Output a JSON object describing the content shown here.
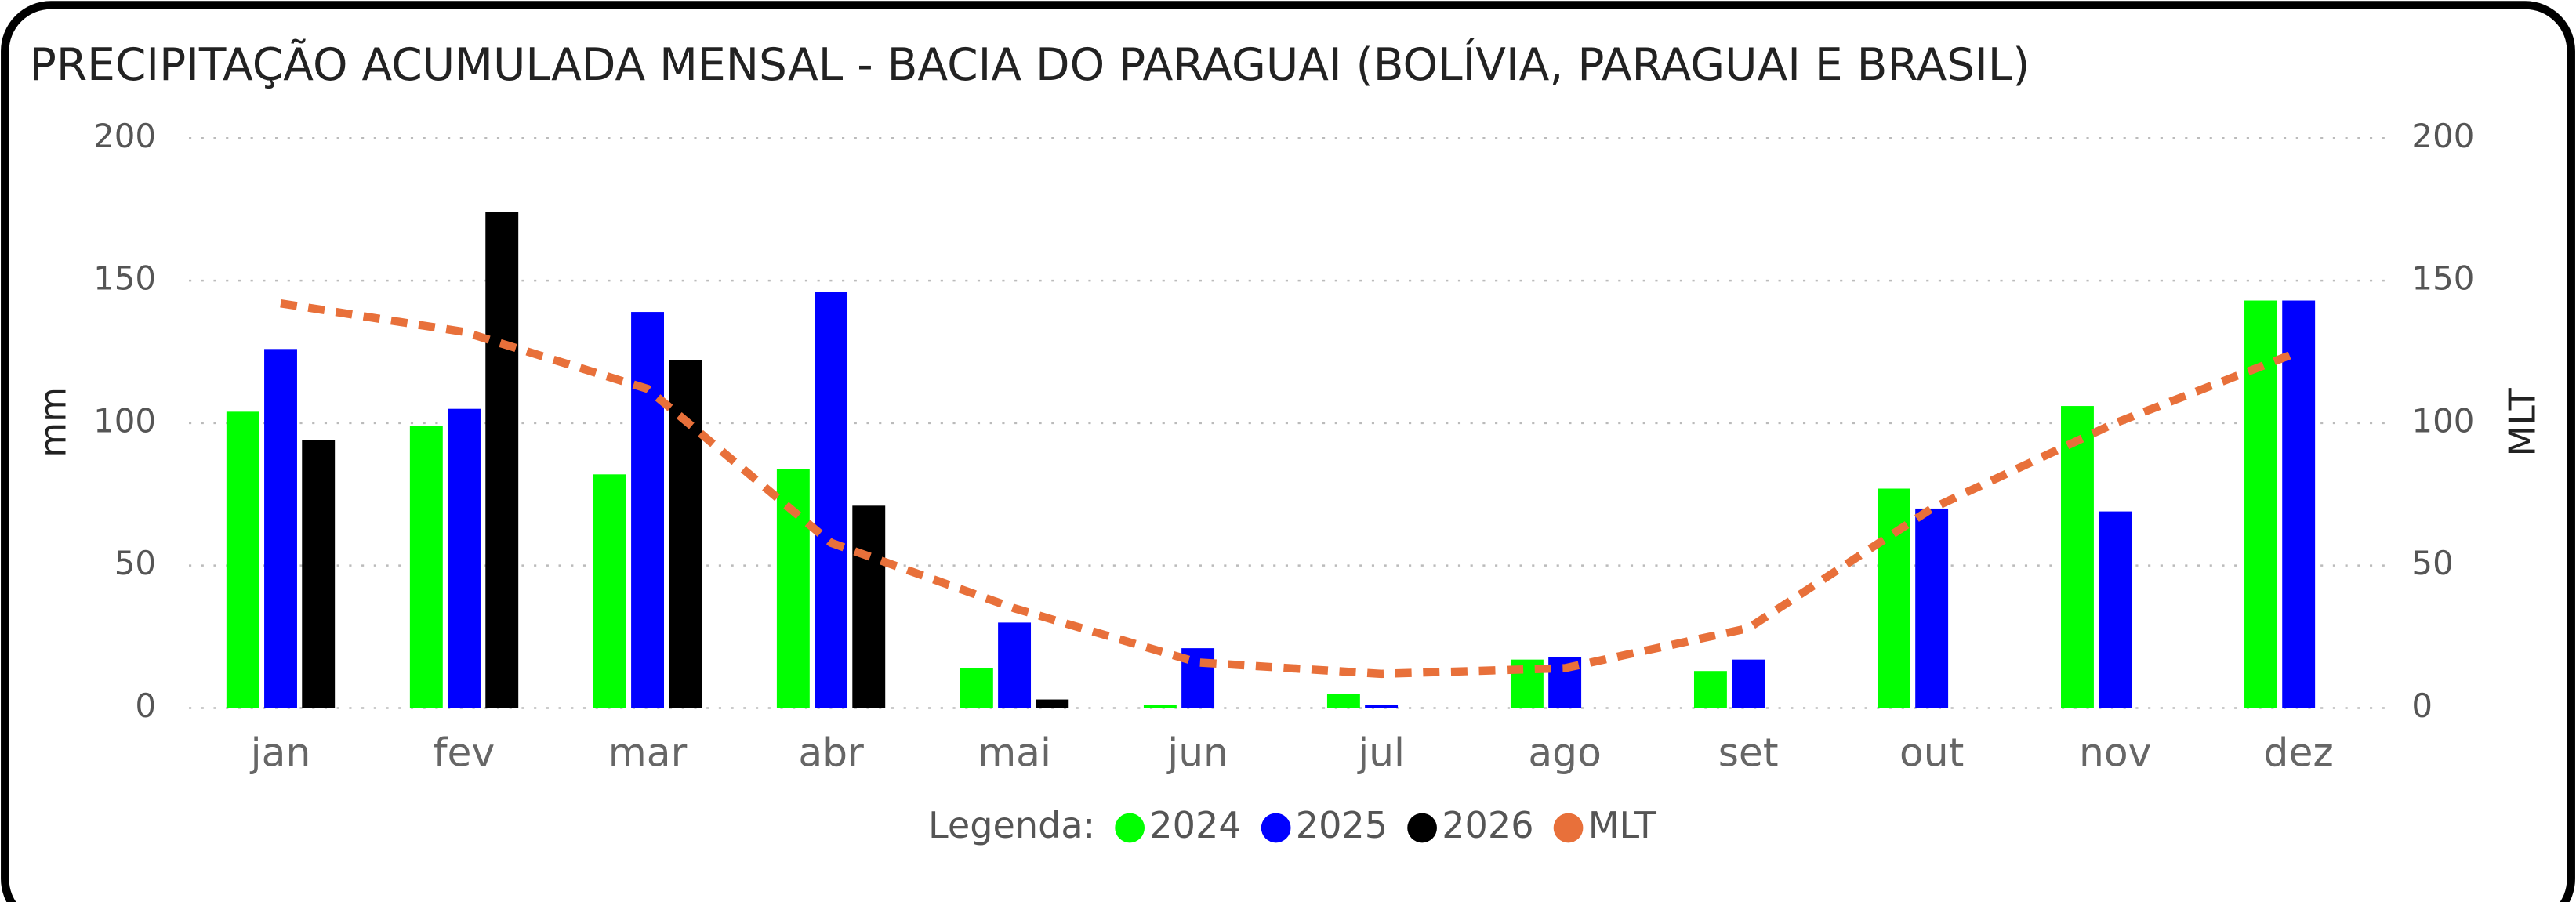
{
  "chart_data": {
    "type": "bar",
    "title": "PRECIPITAÇÃO ACUMULADA MENSAL - BACIA DO PARAGUAI (BOLÍVIA, PARAGUAI E BRASIL)",
    "y_label": "mm",
    "y2_label": "MLT",
    "legend_title": "Legenda:",
    "categories": [
      "jan",
      "fev",
      "mar",
      "abr",
      "mai",
      "jun",
      "jul",
      "ago",
      "set",
      "out",
      "nov",
      "dez"
    ],
    "series": [
      {
        "name": "2024",
        "color": "#00ff00",
        "type": "bar",
        "values": [
          104,
          99,
          82,
          84,
          14,
          1,
          5,
          17,
          13,
          77,
          106,
          143
        ]
      },
      {
        "name": "2025",
        "color": "#0000ff",
        "type": "bar",
        "values": [
          126,
          105,
          139,
          146,
          30,
          21,
          1,
          18,
          17,
          70,
          69,
          143
        ]
      },
      {
        "name": "2026",
        "color": "#000000",
        "type": "bar",
        "values": [
          94,
          174,
          122,
          71,
          3,
          null,
          null,
          null,
          null,
          null,
          null,
          null
        ]
      },
      {
        "name": "MLT",
        "color": "#e8703a",
        "type": "line",
        "axis": "y2",
        "values": [
          142,
          132,
          112,
          58,
          35,
          16,
          12,
          14,
          28,
          70,
          100,
          125
        ]
      }
    ],
    "ylim": [
      0,
      200
    ],
    "yticks": [
      0,
      50,
      100,
      150,
      200
    ],
    "y2lim": [
      0,
      200
    ],
    "y2ticks": [
      0,
      50,
      100,
      150,
      200
    ],
    "grid": true,
    "legend": "bottom"
  }
}
